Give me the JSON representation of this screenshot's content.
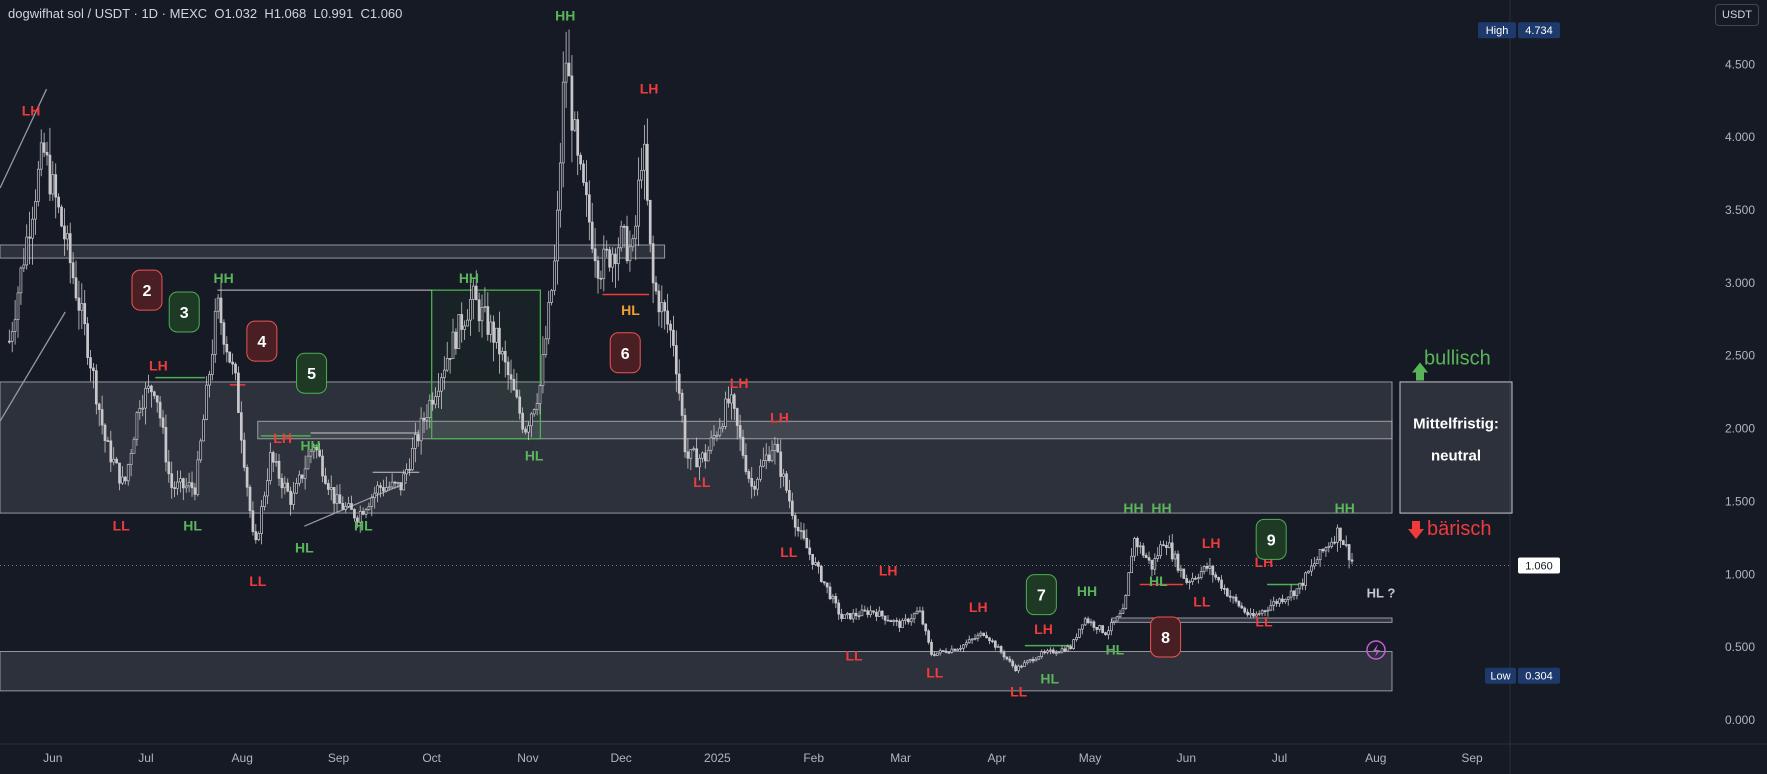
{
  "header": {
    "symbol": "dogwifhat sol / USDT",
    "interval": "1D",
    "exchange": "MEXC",
    "open": "O1.032",
    "high": "H1.068",
    "low": "L0.991",
    "close": "C1.060"
  },
  "currency_button": "USDT",
  "price_tags": {
    "high_label": "High",
    "high_value": "4.734",
    "low_label": "Low",
    "low_value": "0.304",
    "last_value": "1.060"
  },
  "colors": {
    "background": "#161a25",
    "candle": "#c8c8cc",
    "green_label": "#5ab55a",
    "red_label": "#ef3b3b",
    "orange_label": "#f0a030",
    "zone_fill": "rgba(255,255,255,0.10)",
    "zone_border": "#c8c8cc",
    "bull_box": "#4caf50"
  },
  "annotations": {
    "bullish": "bullisch",
    "bearish": "bärisch",
    "medium_term": "Mittelfristig:",
    "medium_term_value": "neutral",
    "hl_question": "HL ?"
  },
  "chart_data": {
    "type": "candlestick",
    "title": "",
    "y_scale": "linear",
    "ylim": [
      0,
      4.9
    ],
    "y_ticks": [
      "0.000",
      "0.500",
      "1.000",
      "1.500",
      "2.000",
      "2.500",
      "3.000",
      "3.500",
      "4.000",
      "4.500"
    ],
    "x_ticks": [
      "Jun",
      "Jul",
      "Aug",
      "Sep",
      "Oct",
      "Nov",
      "Dec",
      "2025",
      "Feb",
      "Mar",
      "Apr",
      "May",
      "Jun",
      "Jul",
      "Aug",
      "Sep"
    ],
    "grid": false,
    "path": [
      {
        "date": "2024-05-18",
        "close": 2.6
      },
      {
        "date": "2024-05-26",
        "close": 3.6
      },
      {
        "date": "2024-05-29",
        "close": 3.9
      },
      {
        "date": "2024-06-05",
        "close": 3.3
      },
      {
        "date": "2024-06-12",
        "close": 2.6
      },
      {
        "date": "2024-06-18",
        "close": 1.9
      },
      {
        "date": "2024-06-24",
        "close": 1.6
      },
      {
        "date": "2024-06-29",
        "close": 2.2
      },
      {
        "date": "2024-07-04",
        "close": 2.3
      },
      {
        "date": "2024-07-09",
        "close": 1.6
      },
      {
        "date": "2024-07-17",
        "close": 1.6
      },
      {
        "date": "2024-07-24",
        "close": 2.85
      },
      {
        "date": "2024-07-30",
        "close": 2.3
      },
      {
        "date": "2024-08-05",
        "close": 1.15
      },
      {
        "date": "2024-08-10",
        "close": 1.8
      },
      {
        "date": "2024-08-17",
        "close": 1.5
      },
      {
        "date": "2024-08-24",
        "close": 1.9
      },
      {
        "date": "2024-08-31",
        "close": 1.5
      },
      {
        "date": "2024-09-07",
        "close": 1.4
      },
      {
        "date": "2024-09-14",
        "close": 1.6
      },
      {
        "date": "2024-09-21",
        "close": 1.6
      },
      {
        "date": "2024-09-29",
        "close": 2.1
      },
      {
        "date": "2024-10-06",
        "close": 2.5
      },
      {
        "date": "2024-10-14",
        "close": 2.9
      },
      {
        "date": "2024-10-22",
        "close": 2.6
      },
      {
        "date": "2024-10-31",
        "close": 2.0
      },
      {
        "date": "2024-11-05",
        "close": 2.3
      },
      {
        "date": "2024-11-10",
        "close": 3.2
      },
      {
        "date": "2024-11-13",
        "close": 4.6
      },
      {
        "date": "2024-11-17",
        "close": 3.8
      },
      {
        "date": "2024-11-24",
        "close": 3.1
      },
      {
        "date": "2024-12-01",
        "close": 3.3
      },
      {
        "date": "2024-12-05",
        "close": 3.2
      },
      {
        "date": "2024-12-08",
        "close": 4.0
      },
      {
        "date": "2024-12-11",
        "close": 3.0
      },
      {
        "date": "2024-12-18",
        "close": 2.6
      },
      {
        "date": "2024-12-22",
        "close": 1.8
      },
      {
        "date": "2024-12-28",
        "close": 1.8
      },
      {
        "date": "2025-01-05",
        "close": 2.2
      },
      {
        "date": "2025-01-12",
        "close": 1.6
      },
      {
        "date": "2025-01-19",
        "close": 1.9
      },
      {
        "date": "2025-01-27",
        "close": 1.3
      },
      {
        "date": "2025-02-03",
        "close": 1.0
      },
      {
        "date": "2025-02-10",
        "close": 0.7
      },
      {
        "date": "2025-02-20",
        "close": 0.75
      },
      {
        "date": "2025-03-01",
        "close": 0.65
      },
      {
        "date": "2025-03-07",
        "close": 0.75
      },
      {
        "date": "2025-03-11",
        "close": 0.45
      },
      {
        "date": "2025-03-20",
        "close": 0.5
      },
      {
        "date": "2025-03-28",
        "close": 0.6
      },
      {
        "date": "2025-04-07",
        "close": 0.35
      },
      {
        "date": "2025-04-15",
        "close": 0.45
      },
      {
        "date": "2025-04-25",
        "close": 0.5
      },
      {
        "date": "2025-04-29",
        "close": 0.7
      },
      {
        "date": "2025-05-06",
        "close": 0.6
      },
      {
        "date": "2025-05-12",
        "close": 0.75
      },
      {
        "date": "2025-05-15",
        "close": 1.25
      },
      {
        "date": "2025-05-21",
        "close": 1.05
      },
      {
        "date": "2025-05-25",
        "close": 1.25
      },
      {
        "date": "2025-06-01",
        "close": 0.95
      },
      {
        "date": "2025-06-08",
        "close": 1.05
      },
      {
        "date": "2025-06-15",
        "close": 0.85
      },
      {
        "date": "2025-06-22",
        "close": 0.7
      },
      {
        "date": "2025-06-29",
        "close": 0.8
      },
      {
        "date": "2025-07-07",
        "close": 0.9
      },
      {
        "date": "2025-07-13",
        "close": 1.1
      },
      {
        "date": "2025-07-20",
        "close": 1.3
      },
      {
        "date": "2025-07-25",
        "close": 1.06
      }
    ],
    "zones": [
      {
        "name": "mid-zone",
        "y0": 1.42,
        "y1": 2.32
      },
      {
        "name": "mid-inner-band",
        "y0": 1.93,
        "y1": 2.05
      },
      {
        "name": "top-band",
        "y0": 3.17,
        "y1": 3.26
      },
      {
        "name": "low-zone",
        "y0": 0.2,
        "y1": 0.47
      }
    ],
    "structure_labels": [
      {
        "text": "LH",
        "date": "2024-05-25",
        "price": 4.15,
        "color": "red"
      },
      {
        "text": "LH",
        "date": "2024-07-05",
        "price": 2.4,
        "color": "red"
      },
      {
        "text": "LL",
        "date": "2024-06-23",
        "price": 1.3,
        "color": "red"
      },
      {
        "text": "HL",
        "date": "2024-07-16",
        "price": 1.3,
        "color": "green"
      },
      {
        "text": "HH",
        "date": "2024-07-26",
        "price": 3.0,
        "color": "green"
      },
      {
        "text": "LH",
        "date": "2024-08-14",
        "price": 1.9,
        "color": "red"
      },
      {
        "text": "HH",
        "date": "2024-08-23",
        "price": 1.85,
        "color": "green"
      },
      {
        "text": "LL",
        "date": "2024-08-06",
        "price": 0.92,
        "color": "red"
      },
      {
        "text": "HL",
        "date": "2024-08-21",
        "price": 1.15,
        "color": "green"
      },
      {
        "text": "HL",
        "date": "2024-09-09",
        "price": 1.3,
        "color": "green"
      },
      {
        "text": "HH",
        "date": "2024-10-13",
        "price": 3.0,
        "color": "green"
      },
      {
        "text": "HL",
        "date": "2024-11-03",
        "price": 1.78,
        "color": "green"
      },
      {
        "text": "HH",
        "date": "2024-11-13",
        "price": 4.8,
        "color": "green"
      },
      {
        "text": "LH",
        "date": "2024-12-10",
        "price": 4.3,
        "color": "red"
      },
      {
        "text": "HL",
        "date": "2024-12-04",
        "price": 2.78,
        "color": "orange"
      },
      {
        "text": "LH",
        "date": "2025-01-08",
        "price": 2.28,
        "color": "red"
      },
      {
        "text": "LH",
        "date": "2025-01-21",
        "price": 2.04,
        "color": "red"
      },
      {
        "text": "LL",
        "date": "2024-12-27",
        "price": 1.6,
        "color": "red"
      },
      {
        "text": "LL",
        "date": "2025-01-24",
        "price": 1.12,
        "color": "red"
      },
      {
        "text": "LH",
        "date": "2025-02-25",
        "price": 0.99,
        "color": "red"
      },
      {
        "text": "LL",
        "date": "2025-02-14",
        "price": 0.41,
        "color": "red"
      },
      {
        "text": "LL",
        "date": "2025-03-12",
        "price": 0.29,
        "color": "red"
      },
      {
        "text": "LH",
        "date": "2025-03-26",
        "price": 0.74,
        "color": "red"
      },
      {
        "text": "LH",
        "date": "2025-04-16",
        "price": 0.59,
        "color": "red"
      },
      {
        "text": "LL",
        "date": "2025-04-08",
        "price": 0.16,
        "color": "red"
      },
      {
        "text": "HL",
        "date": "2025-04-18",
        "price": 0.25,
        "color": "green"
      },
      {
        "text": "HH",
        "date": "2025-04-30",
        "price": 0.85,
        "color": "green"
      },
      {
        "text": "HL",
        "date": "2025-05-09",
        "price": 0.45,
        "color": "green"
      },
      {
        "text": "HH",
        "date": "2025-05-15",
        "price": 1.42,
        "color": "green"
      },
      {
        "text": "HH",
        "date": "2025-05-24",
        "price": 1.42,
        "color": "green"
      },
      {
        "text": "HL",
        "date": "2025-05-23",
        "price": 0.92,
        "color": "green"
      },
      {
        "text": "LH",
        "date": "2025-06-09",
        "price": 1.18,
        "color": "red"
      },
      {
        "text": "LL",
        "date": "2025-06-06",
        "price": 0.78,
        "color": "red"
      },
      {
        "text": "LH",
        "date": "2025-06-26",
        "price": 1.05,
        "color": "red"
      },
      {
        "text": "LL",
        "date": "2025-06-26",
        "price": 0.64,
        "color": "red"
      },
      {
        "text": "HH",
        "date": "2025-07-22",
        "price": 1.42,
        "color": "green"
      }
    ],
    "numbered_callouts": [
      {
        "text": "2",
        "date": "2024-07-01",
        "price": 2.95,
        "style": "red"
      },
      {
        "text": "3",
        "date": "2024-07-13",
        "price": 2.8,
        "style": "green"
      },
      {
        "text": "4",
        "date": "2024-08-07",
        "price": 2.6,
        "style": "red"
      },
      {
        "text": "5",
        "date": "2024-08-23",
        "price": 2.38,
        "style": "green"
      },
      {
        "text": "6",
        "date": "2024-12-02",
        "price": 2.52,
        "style": "red"
      },
      {
        "text": "7",
        "date": "2025-04-15",
        "price": 0.86,
        "style": "green"
      },
      {
        "text": "8",
        "date": "2025-05-25",
        "price": 0.57,
        "style": "red"
      },
      {
        "text": "9",
        "date": "2025-06-28",
        "price": 1.24,
        "style": "green"
      }
    ]
  }
}
